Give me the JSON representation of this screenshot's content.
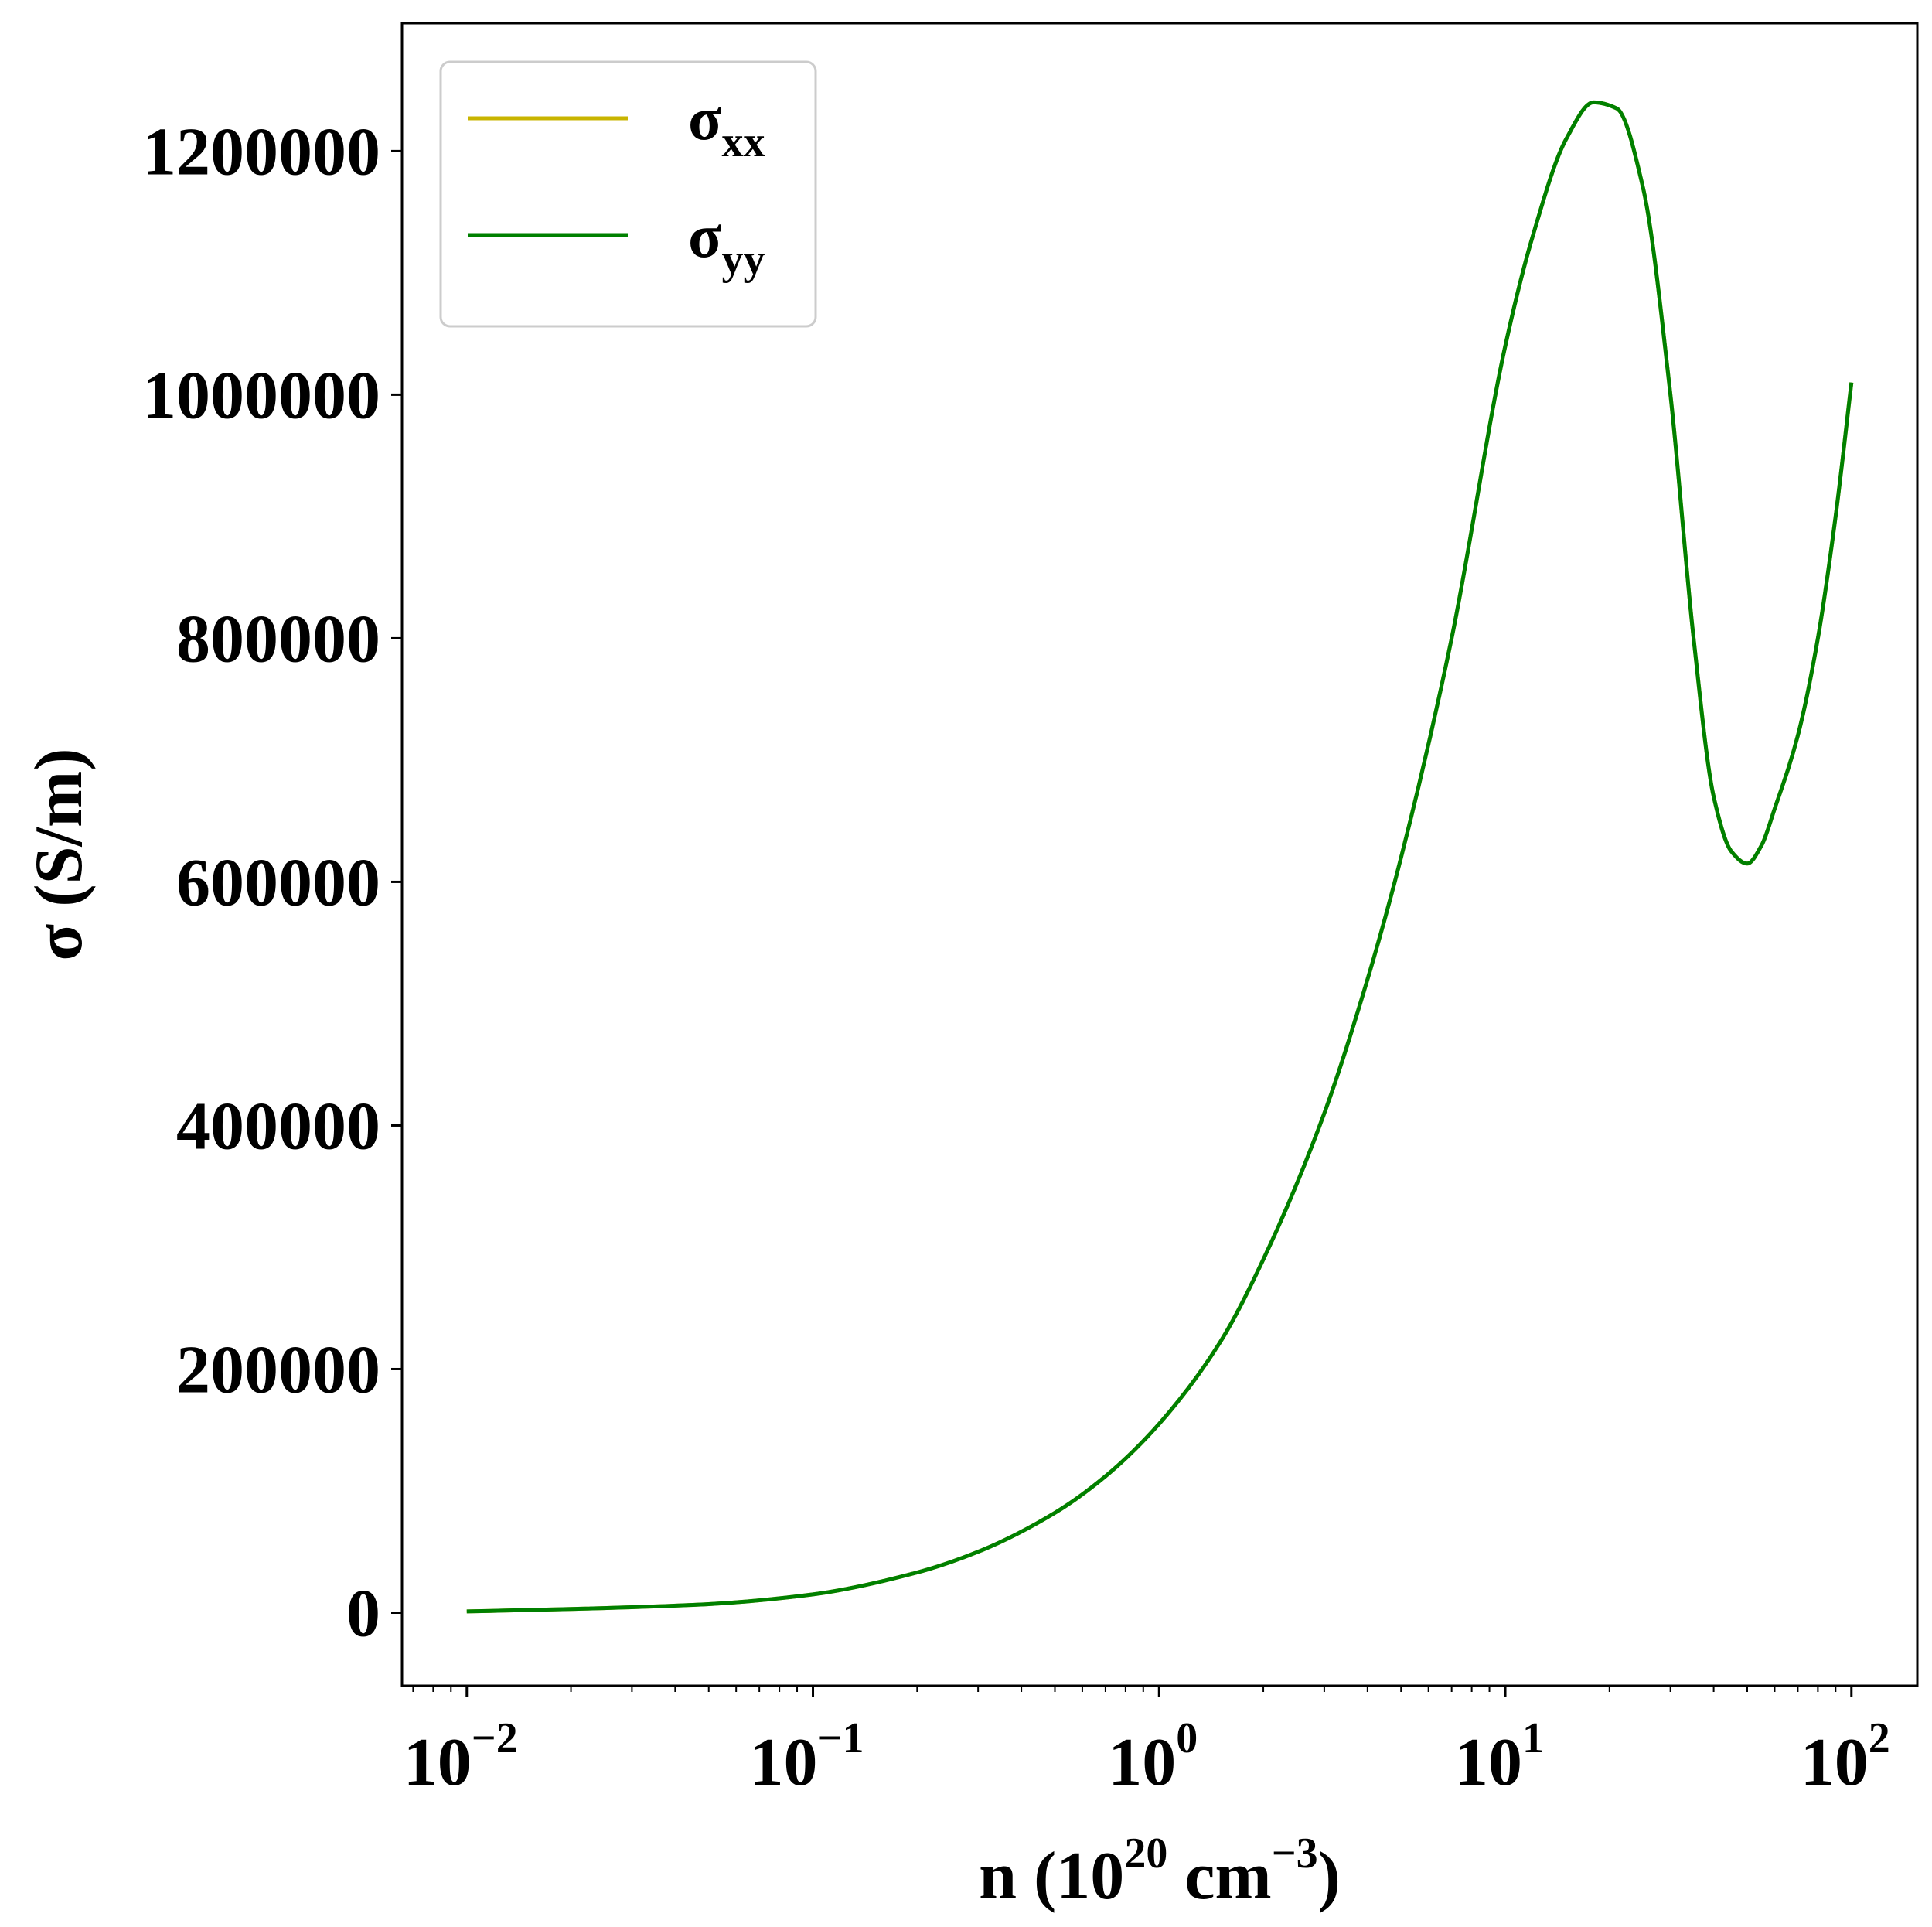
{
  "chart_data": {
    "type": "line",
    "xscale": "log",
    "xlabel": {
      "base": "n (10",
      "exp1": "20",
      "mid": " cm",
      "exp2": "−3",
      "end": ")"
    },
    "ylabel": "σ (S/m)",
    "xlim": [
      0.0065,
      155
    ],
    "ylim": [
      -60000,
      1305000
    ],
    "x_ticks": [
      {
        "value": 0.01,
        "base": "10",
        "exp": "−2"
      },
      {
        "value": 0.1,
        "base": "10",
        "exp": "−1"
      },
      {
        "value": 1,
        "base": "10",
        "exp": "0"
      },
      {
        "value": 10,
        "base": "10",
        "exp": "1"
      },
      {
        "value": 100,
        "base": "10",
        "exp": "2"
      }
    ],
    "y_ticks": [
      {
        "value": 0,
        "label": "0"
      },
      {
        "value": 200000,
        "label": "200000"
      },
      {
        "value": 400000,
        "label": "400000"
      },
      {
        "value": 600000,
        "label": "600000"
      },
      {
        "value": 800000,
        "label": "800000"
      },
      {
        "value": 1000000,
        "label": "1000000"
      },
      {
        "value": 1200000,
        "label": "1200000"
      }
    ],
    "legend": {
      "position": "top-left",
      "entries": [
        {
          "sym": "σ",
          "sub": "xx",
          "color": "#c8b400"
        },
        {
          "sym": "σ",
          "sub": "yy",
          "color": "#008000"
        }
      ]
    },
    "series": [
      {
        "name": "σxx",
        "color": "#c8b400",
        "x": [
          0.01,
          0.02,
          0.05,
          0.1,
          0.2,
          0.3,
          0.5,
          0.7,
          1,
          1.5,
          2,
          3,
          4,
          5,
          7,
          10,
          12,
          15,
          18,
          21,
          25,
          30,
          35,
          40,
          45,
          50,
          55,
          60,
          70,
          80,
          90,
          100
        ],
        "y": [
          1000,
          3000,
          7000,
          15000,
          33000,
          50000,
          82000,
          112000,
          155000,
          222000,
          290000,
          410000,
          520000,
          620000,
          800000,
          1040000,
          1130000,
          1210000,
          1240000,
          1235000,
          1170000,
          1000000,
          800000,
          670000,
          625000,
          615000,
          630000,
          660000,
          720000,
          800000,
          900000,
          1010000
        ]
      },
      {
        "name": "σyy",
        "color": "#008000",
        "x": [
          0.01,
          0.02,
          0.05,
          0.1,
          0.2,
          0.3,
          0.5,
          0.7,
          1,
          1.5,
          2,
          3,
          4,
          5,
          7,
          10,
          12,
          15,
          18,
          21,
          25,
          30,
          35,
          40,
          45,
          50,
          55,
          60,
          70,
          80,
          90,
          100
        ],
        "y": [
          1000,
          3000,
          7000,
          15000,
          33000,
          50000,
          82000,
          112000,
          155000,
          222000,
          290000,
          410000,
          520000,
          620000,
          800000,
          1040000,
          1130000,
          1210000,
          1240000,
          1235000,
          1170000,
          1000000,
          800000,
          670000,
          625000,
          615000,
          630000,
          660000,
          720000,
          800000,
          900000,
          1010000
        ]
      }
    ]
  }
}
